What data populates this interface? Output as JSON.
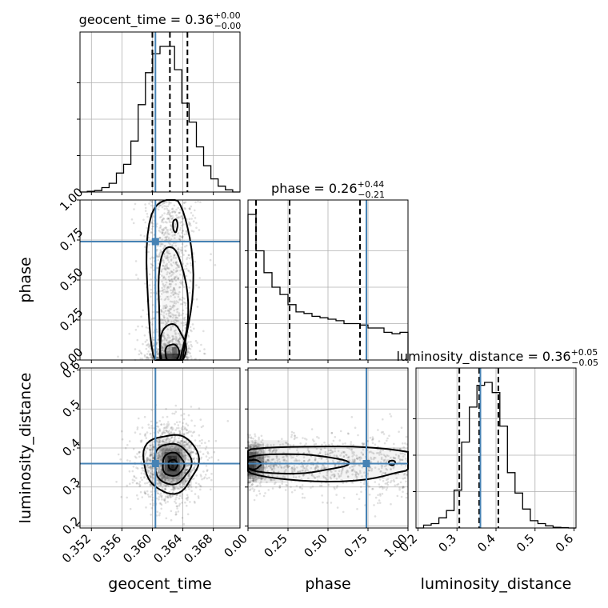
{
  "colors": {
    "truth": "#4682b4",
    "contour": "#000000",
    "scatter": "#555555",
    "grid": "#b0b0b0"
  },
  "chart_data": {
    "type": "corner",
    "parameters": [
      "geocent_time",
      "phase",
      "luminosity_distance"
    ],
    "truths": {
      "geocent_time": 0.3604,
      "phase": 0.74,
      "luminosity_distance": 0.36
    },
    "panel_titles": {
      "geocent_time": {
        "name": "geocent_time",
        "median": "0.36",
        "plus": "+0.00",
        "minus": "−0.00"
      },
      "phase": {
        "name": "phase",
        "median": "0.26",
        "plus": "+0.44",
        "minus": "−0.21"
      },
      "luminosity_distance": {
        "name": "luminosity_distance",
        "median": "0.36",
        "plus": "+0.05",
        "minus": "−0.05"
      }
    },
    "axes": {
      "geocent_time": {
        "range": [
          0.3505,
          0.3715
        ],
        "ticks": [
          0.352,
          0.356,
          0.36,
          0.364,
          0.368
        ],
        "tick_labels": [
          "0.352",
          "0.356",
          "0.360",
          "0.364",
          "0.368"
        ]
      },
      "phase": {
        "range": [
          0.0,
          1.0
        ],
        "ticks": [
          0.0,
          0.25,
          0.5,
          0.75,
          1.0
        ],
        "tick_labels": [
          "0.00",
          "0.25",
          "0.50",
          "0.75",
          "1.00"
        ]
      },
      "luminosity_distance": {
        "range": [
          0.195,
          0.605
        ],
        "ticks": [
          0.2,
          0.3,
          0.4,
          0.5,
          0.6
        ],
        "tick_labels": [
          "0.2",
          "0.3",
          "0.4",
          "0.5",
          "0.6"
        ]
      }
    },
    "histograms": {
      "geocent_time": {
        "quantiles": [
          0.36,
          0.3623,
          0.3646
        ],
        "counts": [
          0,
          0.5,
          1,
          3,
          6,
          13,
          19,
          35,
          60,
          82,
          95,
          100,
          100,
          84,
          61,
          48,
          31,
          18,
          9,
          4,
          1.5,
          0
        ]
      },
      "phase": {
        "quantiles": [
          0.05,
          0.26,
          0.7
        ],
        "counts": [
          100,
          75,
          60,
          50,
          45,
          38,
          33,
          32,
          30,
          29,
          28,
          27,
          25,
          25,
          24,
          22,
          22,
          19,
          18,
          19
        ]
      },
      "luminosity_distance": {
        "quantiles": [
          0.306,
          0.357,
          0.406
        ],
        "counts": [
          0,
          2,
          3,
          7,
          12,
          26,
          59,
          83,
          98,
          100,
          93,
          70,
          38,
          24,
          13,
          5,
          3,
          1.5,
          0.5,
          0.3,
          0
        ]
      }
    },
    "grid": true
  }
}
